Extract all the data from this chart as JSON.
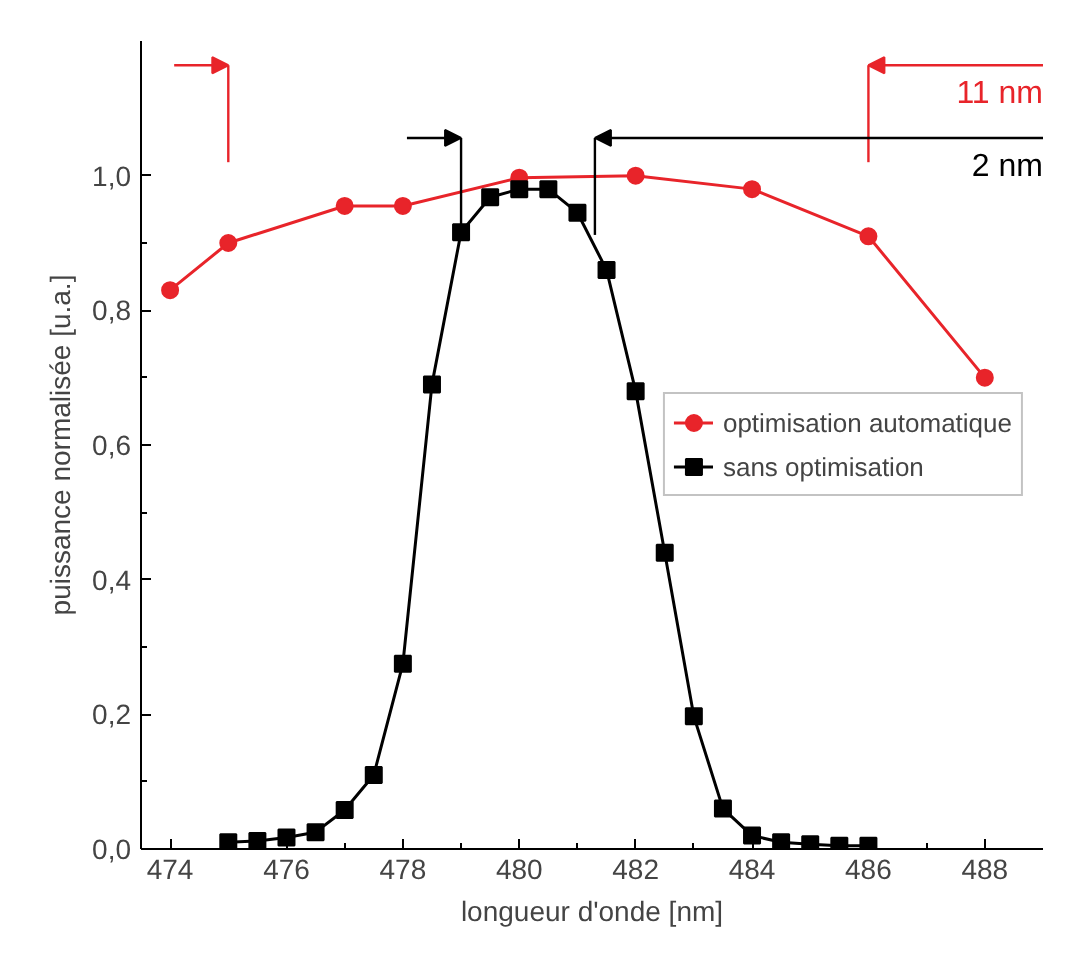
{
  "chart_data": {
    "type": "line",
    "xlabel": "longueur d'onde [nm]",
    "ylabel": "puissance normalisée [u.a.]",
    "xlim": [
      473.5,
      489
    ],
    "xticks": [
      474,
      476,
      478,
      480,
      482,
      484,
      486,
      488
    ],
    "ylim": [
      0,
      1.2
    ],
    "yticks": [
      {
        "value": 0,
        "label": "0,0"
      },
      {
        "value": 0.2,
        "label": "0,2"
      },
      {
        "value": 0.4,
        "label": "0,4"
      },
      {
        "value": 0.6,
        "label": "0,6"
      },
      {
        "value": 0.8,
        "label": "0,8"
      },
      {
        "value": 1.0,
        "label": "1,0"
      }
    ],
    "series": [
      {
        "name": "optimisation automatique",
        "color": "#e8242a",
        "marker": "circle",
        "x": [
          474,
          475,
          477,
          478,
          480,
          482,
          484,
          486,
          488
        ],
        "values": [
          0.83,
          0.9,
          0.955,
          0.955,
          0.997,
          1.0,
          0.98,
          0.91,
          0.7
        ]
      },
      {
        "name": "sans optimisation",
        "color": "#000000",
        "marker": "square",
        "x": [
          475,
          475.5,
          476,
          476.5,
          477,
          477.5,
          478,
          478.5,
          479,
          479.5,
          480,
          480.5,
          481,
          481.5,
          482,
          482.5,
          483,
          483.5,
          484,
          484.5,
          485,
          485.5,
          486
        ],
        "values": [
          0.01,
          0.012,
          0.017,
          0.025,
          0.058,
          0.11,
          0.275,
          0.69,
          0.916,
          0.968,
          0.98,
          0.98,
          0.945,
          0.86,
          0.68,
          0.44,
          0.197,
          0.06,
          0.02,
          0.01,
          0.007,
          0.005,
          0.005
        ]
      }
    ],
    "ref_lines": [
      {
        "axis": "x",
        "value": 475,
        "color": "#e8242a"
      },
      {
        "axis": "x",
        "value": 486,
        "label": "11 nm",
        "color": "#e8242a"
      },
      {
        "axis": "x",
        "value": 479,
        "color": "#000000"
      },
      {
        "axis": "x",
        "value": 481.3,
        "label": "2 nm",
        "color": "#000000"
      }
    ],
    "legend": "center right",
    "grid": false
  }
}
